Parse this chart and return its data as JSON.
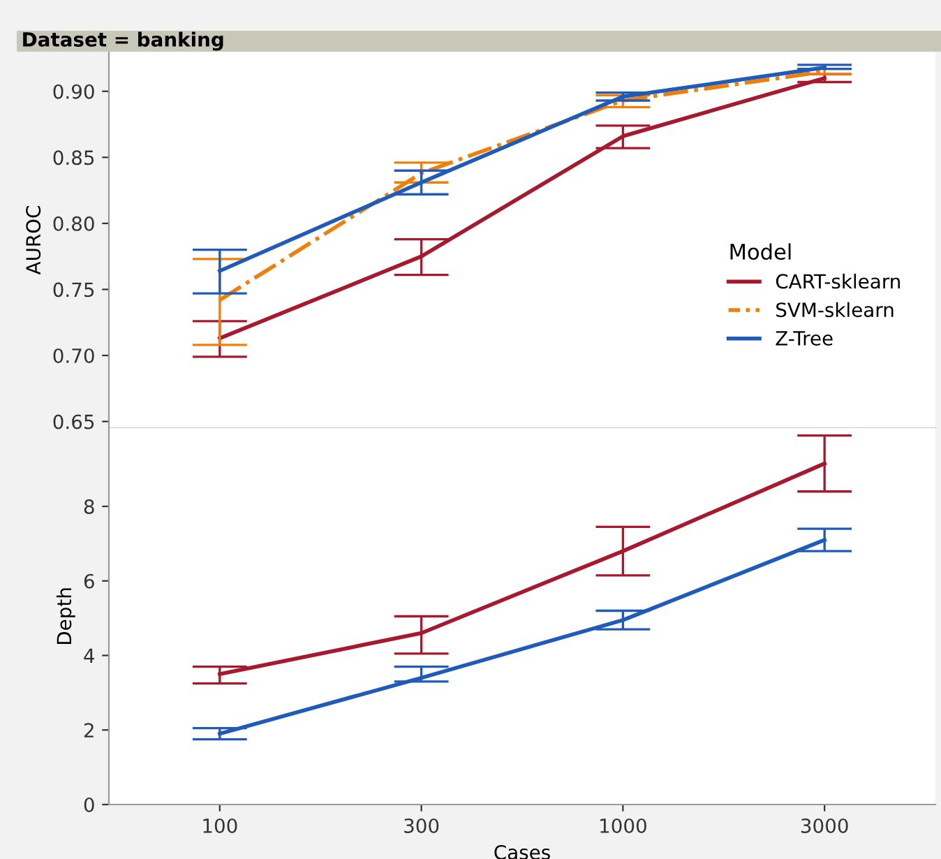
{
  "chart_data": [
    {
      "type": "line",
      "title": "Dataset = banking",
      "ylabel": "AUROC",
      "categories": [
        "100",
        "300",
        "1000",
        "3000"
      ],
      "ylim": [
        0.645,
        0.93
      ],
      "yticks": [
        0.65,
        {
          "value": 0.7,
          "label": "0.70"
        },
        0.75,
        {
          "value": 0.8,
          "label": "0.80"
        },
        0.85,
        {
          "value": 0.9,
          "label": "0.90"
        }
      ],
      "tick_labels": "y",
      "legend": "right",
      "legend_title": "Model",
      "grid": false,
      "marker": "none",
      "series": [
        {
          "name": "CART-sklearn",
          "color": "#a6192e",
          "values": [
            0.713,
            0.775,
            0.866,
            0.91
          ],
          "errors": [
            [
              0.699,
              0.726
            ],
            [
              0.761,
              0.788
            ],
            [
              0.857,
              0.874
            ],
            [
              0.907,
              0.913
            ]
          ]
        },
        {
          "name": "SVM-sklearn",
          "color": "#f07f09",
          "line_style": "dashdot",
          "values": [
            0.742,
            0.838,
            0.893,
            0.915
          ],
          "errors": [
            [
              0.708,
              0.773
            ],
            [
              0.831,
              0.846
            ],
            [
              0.888,
              0.897
            ],
            [
              0.913,
              0.917
            ]
          ]
        },
        {
          "name": "Z-Tree",
          "color": "#1f5bb9",
          "values": [
            0.764,
            0.831,
            0.896,
            0.918
          ],
          "errors": [
            [
              0.747,
              0.78
            ],
            [
              0.822,
              0.84
            ],
            [
              0.893,
              0.899
            ],
            [
              0.917,
              0.92
            ]
          ]
        }
      ]
    },
    {
      "type": "line",
      "ylabel": "Depth",
      "xlabel": "Cases",
      "categories": [
        "100",
        "300",
        "1000",
        "3000"
      ],
      "ylim": [
        0,
        10.1
      ],
      "yticks": [
        0,
        2,
        4,
        6,
        8
      ],
      "grid": false,
      "marker": "none",
      "legend": false,
      "series": [
        {
          "color": "#a6192e",
          "values": [
            3.5,
            4.6,
            6.8,
            9.15
          ],
          "errors": [
            [
              3.25,
              3.7
            ],
            [
              4.05,
              5.05
            ],
            [
              6.15,
              7.45
            ],
            [
              8.4,
              9.9
            ]
          ]
        },
        {
          "color": "#1f5bb9",
          "values": [
            1.9,
            3.4,
            4.95,
            7.1
          ],
          "errors": [
            [
              1.75,
              2.05
            ],
            [
              3.3,
              3.7
            ],
            [
              4.7,
              5.2
            ],
            [
              6.8,
              7.4
            ]
          ]
        }
      ]
    }
  ]
}
